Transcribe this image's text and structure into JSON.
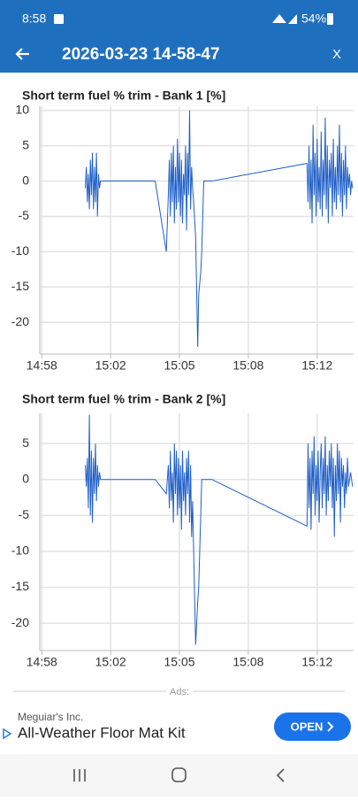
{
  "status_bar": {
    "time": "8:58",
    "battery": "54%"
  },
  "header": {
    "title": "2026-03-23 14-58-47",
    "close": "X"
  },
  "chart_data": [
    {
      "type": "line",
      "title": "Short term fuel % trim - Bank 1 [%]",
      "color": "#1f5fc7",
      "grid": true,
      "x": [
        900.75,
        900.8,
        900.85,
        900.9,
        900.95,
        901.0,
        901.05,
        901.1,
        901.15,
        901.2,
        901.25,
        901.3,
        901.35,
        901.4,
        901.45,
        901.5,
        904.2,
        904.75,
        904.85,
        904.9,
        904.95,
        905.0,
        905.05,
        905.1,
        905.15,
        905.2,
        905.25,
        905.3,
        905.35,
        905.4,
        905.45,
        905.5,
        905.55,
        905.6,
        905.65,
        905.7,
        905.75,
        905.8,
        905.85,
        905.9,
        905.95,
        906.0,
        906.05,
        906.1,
        906.2,
        906.3,
        906.35,
        906.45,
        906.5,
        906.6,
        906.65,
        907.0,
        911.7,
        911.75,
        911.8,
        911.85,
        911.9,
        911.95,
        912.0,
        912.05,
        912.1,
        912.15,
        912.2,
        912.25,
        912.3,
        912.35,
        912.4,
        912.45,
        912.5,
        912.55,
        912.6,
        912.65,
        912.7,
        912.75,
        912.8,
        912.85,
        912.9,
        912.95,
        913.0,
        913.05,
        913.1,
        913.15,
        913.2,
        913.25,
        913.3,
        913.35,
        913.4,
        913.45,
        913.5,
        913.55,
        913.6,
        913.65,
        913.7,
        913.75,
        913.8,
        913.85,
        913.9,
        913.95
      ],
      "values": [
        -1,
        2,
        -3,
        1,
        -4,
        3,
        -2,
        4,
        -4,
        2,
        -3,
        4,
        -5,
        1,
        -1,
        0,
        0,
        -10,
        -2,
        3,
        -5,
        4,
        -3,
        5,
        -6,
        2,
        -4,
        6,
        -3,
        4,
        -5,
        3,
        -6,
        1,
        -2,
        5,
        -7,
        4,
        -2,
        10,
        -4,
        2,
        -1,
        -3,
        -8,
        -23.5,
        -16,
        -13,
        -10,
        0,
        0,
        0,
        2.5,
        -3,
        5,
        -4,
        3,
        -6,
        8,
        -2,
        4,
        -5,
        6,
        -3,
        2,
        -4,
        7,
        -5,
        3,
        -2,
        9,
        -4,
        5,
        -6,
        3,
        -1,
        4,
        -5,
        6,
        -3,
        2,
        -4,
        5,
        -2,
        8,
        -3,
        4,
        -5,
        3,
        -2,
        5,
        -4,
        2,
        -1,
        1,
        -2,
        0,
        -1
      ],
      "xlim": [
        898.5,
        914.0
      ],
      "xticks": [
        {
          "value": 898.6,
          "label": "14:58"
        },
        {
          "value": 902.0,
          "label": "15:02"
        },
        {
          "value": 905.4,
          "label": "15:05"
        },
        {
          "value": 908.8,
          "label": "15:08"
        },
        {
          "value": 912.2,
          "label": "15:12"
        }
      ],
      "ylim": [
        -24.5,
        10.6
      ],
      "yticks": [
        -20,
        -15,
        -10,
        -5,
        0,
        5,
        10
      ]
    },
    {
      "type": "line",
      "title": "Short term fuel % trim - Bank 2 [%]",
      "color": "#1f5fc7",
      "grid": true,
      "x": [
        900.75,
        900.8,
        900.85,
        900.9,
        900.95,
        901.0,
        901.05,
        901.1,
        901.15,
        901.2,
        901.25,
        901.3,
        901.35,
        901.4,
        901.45,
        901.5,
        904.2,
        904.75,
        904.85,
        904.9,
        904.95,
        905.0,
        905.05,
        905.1,
        905.15,
        905.2,
        905.25,
        905.3,
        905.35,
        905.4,
        905.45,
        905.5,
        905.55,
        905.6,
        905.65,
        905.7,
        905.75,
        905.8,
        905.85,
        905.9,
        905.95,
        906.0,
        906.05,
        906.1,
        906.2,
        906.3,
        906.35,
        906.45,
        906.5,
        906.6,
        906.65,
        907.0,
        911.7,
        911.75,
        911.8,
        911.85,
        911.9,
        911.95,
        912.0,
        912.05,
        912.1,
        912.15,
        912.2,
        912.25,
        912.3,
        912.35,
        912.4,
        912.45,
        912.5,
        912.55,
        912.6,
        912.65,
        912.7,
        912.75,
        912.8,
        912.85,
        912.9,
        912.95,
        913.0,
        913.05,
        913.1,
        913.15,
        913.2,
        913.25,
        913.3,
        913.35,
        913.4,
        913.45,
        913.5,
        913.55,
        913.6,
        913.65,
        913.7,
        913.75,
        913.8,
        913.85,
        913.9,
        913.95
      ],
      "values": [
        2,
        -1,
        3,
        -4,
        9,
        -5,
        4,
        -6,
        3,
        -2,
        5,
        -3,
        2,
        -1,
        1,
        0,
        0,
        -2,
        2,
        -4,
        4,
        -3,
        1,
        -6,
        5,
        -2,
        4,
        -5,
        3,
        -4,
        2,
        -7,
        4,
        -3,
        1,
        -5,
        3,
        -2,
        4,
        -6,
        2,
        -8,
        -3,
        -10,
        -23,
        -17,
        -15,
        -5,
        0,
        0,
        0,
        0,
        -6.5,
        5,
        -4,
        3,
        -7,
        4,
        -2,
        6,
        -5,
        2,
        -3,
        4,
        -6,
        1,
        5,
        -4,
        3,
        -2,
        6,
        -5,
        2,
        -3,
        4,
        -1,
        5,
        -4,
        3,
        -8,
        2,
        -3,
        5,
        -2,
        4,
        -6,
        3,
        -1,
        2,
        -4,
        1,
        -2,
        3,
        -1,
        0,
        1,
        0,
        -1
      ],
      "xlim": [
        898.5,
        914.0
      ],
      "xticks": [
        {
          "value": 898.6,
          "label": "14:58"
        },
        {
          "value": 902.0,
          "label": "15:02"
        },
        {
          "value": 905.4,
          "label": "15:05"
        },
        {
          "value": 908.8,
          "label": "15:08"
        },
        {
          "value": 912.2,
          "label": "15:12"
        }
      ],
      "ylim": [
        -23.8,
        9.2
      ],
      "yticks": [
        -20,
        -15,
        -10,
        -5,
        0,
        5
      ]
    }
  ],
  "ad": {
    "label": "Ads:",
    "advertiser": "Meguiar's Inc.",
    "headline": "All-Weather Floor Mat Kit",
    "button": "OPEN"
  }
}
